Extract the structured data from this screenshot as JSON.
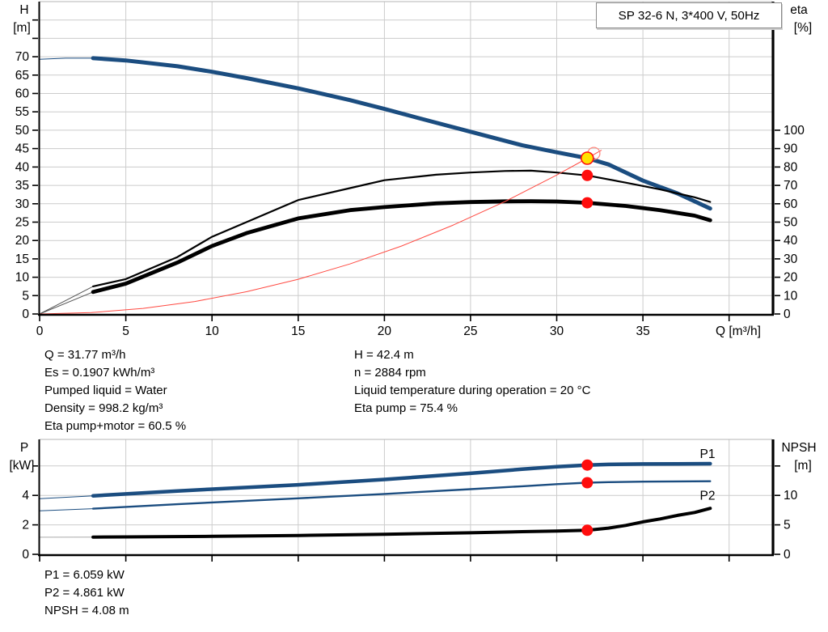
{
  "colors": {
    "curve_blue": "#1B4D80",
    "curve_black": "#000000",
    "system_red": "#FF4A42",
    "marker_red": "#FF0D0D",
    "marker_yellow": "#FFE100",
    "grid_gray": "#CCCCCC",
    "lead_gray": "#909090",
    "axis_black": "#000000"
  },
  "info_left": [
    "Q = 31.77 m³/h",
    "Es = 0.1907 kWh/m³",
    "Pumped liquid = Water",
    "Density = 998.2 kg/m³",
    "Eta pump+motor = 60.5 %"
  ],
  "info_right": [
    "H = 42.4 m",
    "n = 2884 rpm",
    "Liquid temperature during operation = 20 °C",
    "Eta pump = 75.4 %"
  ],
  "results": [
    "P1 = 6.059 kW",
    "P2 = 4.861 kW",
    "NPSH = 4.08 m"
  ],
  "chart_data": [
    {
      "name": "qh-eta-chart",
      "type": "line",
      "title": "SP 32-6 N, 3*400 V, 50Hz",
      "x": {
        "label": "Q [m³/h]",
        "min": 0,
        "max": 42.5,
        "ticks": [
          0,
          5,
          10,
          15,
          20,
          25,
          30,
          35,
          40
        ],
        "labels": [
          "0",
          "5",
          "10",
          "15",
          "20",
          "25",
          "30",
          "35",
          ""
        ]
      },
      "left": {
        "label": [
          "H",
          "[m]"
        ],
        "min": 0,
        "max": 85,
        "grid": 5,
        "ticks": [
          0,
          5,
          10,
          15,
          20,
          25,
          30,
          35,
          40,
          45,
          50,
          55,
          60,
          65,
          70,
          75,
          80
        ],
        "labels": [
          "0",
          "5",
          "10",
          "15",
          "20",
          "25",
          "30",
          "35",
          "40",
          "45",
          "50",
          "55",
          "60",
          "65",
          "70",
          "",
          ""
        ]
      },
      "right": {
        "label": [
          "eta",
          "[%]"
        ],
        "min": 0,
        "max": 170,
        "ticks": [
          0,
          10,
          20,
          30,
          40,
          50,
          60,
          70,
          80,
          90,
          100
        ],
        "labels": [
          "0",
          "10",
          "20",
          "30",
          "40",
          "50",
          "60",
          "70",
          "80",
          "90",
          "100"
        ]
      },
      "series": [
        {
          "name": "head",
          "axis": "left",
          "color": "#1B4D80",
          "width": 5,
          "solid_from": 3.1,
          "lead_color": "#1B4D80",
          "points": [
            [
              0,
              69.3
            ],
            [
              1.5,
              69.6
            ],
            [
              3.1,
              69.6
            ],
            [
              5,
              69.0
            ],
            [
              8,
              67.4
            ],
            [
              10,
              65.9
            ],
            [
              12,
              64.2
            ],
            [
              15,
              61.4
            ],
            [
              18,
              58.2
            ],
            [
              20,
              55.8
            ],
            [
              22,
              53.3
            ],
            [
              25,
              49.6
            ],
            [
              28,
              45.9
            ],
            [
              30,
              44.0
            ],
            [
              31.77,
              42.4
            ],
            [
              33,
              40.7
            ],
            [
              35,
              36.3
            ],
            [
              37,
              32.8
            ],
            [
              38.9,
              28.7
            ]
          ]
        },
        {
          "name": "eta-pump",
          "axis": "right",
          "color": "#000000",
          "width": 2.2,
          "solid_from": 3.1,
          "lead_color": "#555555",
          "points": [
            [
              0,
              0
            ],
            [
              3.1,
              15
            ],
            [
              5,
              19
            ],
            [
              8,
              31
            ],
            [
              10,
              42
            ],
            [
              12,
              50
            ],
            [
              15,
              62
            ],
            [
              18,
              68.5
            ],
            [
              20,
              72.8
            ],
            [
              23,
              75.8
            ],
            [
              25,
              77
            ],
            [
              27,
              77.8
            ],
            [
              28.5,
              78
            ],
            [
              30,
              77
            ],
            [
              31.77,
              75.4
            ],
            [
              34,
              71.5
            ],
            [
              36,
              67.8
            ],
            [
              38,
              63.5
            ],
            [
              38.9,
              61
            ]
          ]
        },
        {
          "name": "eta-pump-motor",
          "axis": "right",
          "color": "#000000",
          "width": 4.8,
          "solid_from": 3.1,
          "lead_color": "#555555",
          "points": [
            [
              0,
              0
            ],
            [
              3.1,
              12
            ],
            [
              5,
              16.5
            ],
            [
              8,
              28
            ],
            [
              10,
              37
            ],
            [
              12,
              44
            ],
            [
              15,
              52
            ],
            [
              18,
              56.5
            ],
            [
              20,
              58.2
            ],
            [
              23,
              60.2
            ],
            [
              25,
              60.9
            ],
            [
              27,
              61.3
            ],
            [
              28.5,
              61.4
            ],
            [
              30,
              61.2
            ],
            [
              31.77,
              60.5
            ],
            [
              34,
              58.8
            ],
            [
              36,
              56.5
            ],
            [
              38,
              53.5
            ],
            [
              38.9,
              51
            ]
          ]
        },
        {
          "name": "system-curve",
          "axis": "left",
          "color": "#FF4A42",
          "width": 1,
          "points": [
            [
              0,
              0
            ],
            [
              3,
              0.38
            ],
            [
              6,
              1.51
            ],
            [
              9,
              3.4
            ],
            [
              12,
              6.05
            ],
            [
              15,
              9.45
            ],
            [
              18,
              13.6
            ],
            [
              21,
              18.5
            ],
            [
              24,
              24.2
            ],
            [
              27,
              30.6
            ],
            [
              30,
              37.8
            ],
            [
              31.77,
              42.4
            ],
            [
              32.6,
              44.6
            ]
          ]
        }
      ],
      "markers": [
        {
          "name": "duty-ring",
          "axis": "left",
          "q": 32.15,
          "v": 43.7,
          "style": "ring"
        },
        {
          "name": "duty-point",
          "axis": "left",
          "q": 31.77,
          "v": 42.4,
          "style": "yellow"
        },
        {
          "name": "eta-pump-point",
          "axis": "right",
          "q": 31.77,
          "v": 75.4,
          "style": "red"
        },
        {
          "name": "eta-pump-motor-point",
          "axis": "right",
          "q": 31.77,
          "v": 60.5,
          "style": "red"
        }
      ],
      "annotations": []
    },
    {
      "name": "power-npsh-chart",
      "type": "line",
      "title": "",
      "x": {
        "label": "",
        "min": 0,
        "max": 42.5,
        "ticks": [
          0,
          5,
          10,
          15,
          20,
          25,
          30,
          35,
          40
        ],
        "labels": [
          "",
          "",
          "",
          "",
          "",
          "",
          "",
          "",
          ""
        ]
      },
      "left": {
        "label": [
          "P",
          "[kW]"
        ],
        "min": 0,
        "max": 7.8,
        "grid": 2,
        "ticks": [
          0,
          2,
          4,
          6
        ],
        "labels": [
          "0",
          "2",
          "4",
          ""
        ]
      },
      "right": {
        "label": [
          "NPSH",
          "[m]"
        ],
        "min": 0,
        "max": 19.5,
        "ticks": [
          0,
          5,
          10,
          15
        ],
        "labels": [
          "0",
          "5",
          "10",
          ""
        ]
      },
      "series": [
        {
          "name": "p1",
          "axis": "left",
          "color": "#1B4D80",
          "width": 4.5,
          "solid_from": 3.1,
          "lead_color": "#1B4D80",
          "points": [
            [
              0,
              3.78
            ],
            [
              3.1,
              3.97
            ],
            [
              5,
              4.1
            ],
            [
              8,
              4.3
            ],
            [
              10,
              4.42
            ],
            [
              15,
              4.72
            ],
            [
              20,
              5.08
            ],
            [
              25,
              5.5
            ],
            [
              28,
              5.78
            ],
            [
              30,
              5.95
            ],
            [
              31.77,
              6.06
            ],
            [
              33,
              6.1
            ],
            [
              35,
              6.13
            ],
            [
              37,
              6.14
            ],
            [
              38.9,
              6.15
            ]
          ]
        },
        {
          "name": "p2",
          "axis": "left",
          "color": "#1B4D80",
          "width": 2.4,
          "solid_from": 3.1,
          "lead_color": "#1B4D80",
          "points": [
            [
              0,
              2.95
            ],
            [
              3.1,
              3.1
            ],
            [
              5,
              3.22
            ],
            [
              8,
              3.4
            ],
            [
              10,
              3.52
            ],
            [
              15,
              3.8
            ],
            [
              20,
              4.1
            ],
            [
              25,
              4.42
            ],
            [
              28,
              4.62
            ],
            [
              30,
              4.76
            ],
            [
              31.77,
              4.861
            ],
            [
              33,
              4.9
            ],
            [
              35,
              4.93
            ],
            [
              37,
              4.95
            ],
            [
              38.9,
              4.96
            ]
          ]
        },
        {
          "name": "npsh",
          "axis": "right",
          "color": "#000000",
          "width": 4,
          "solid_from": 3.1,
          "lead_color": "#aaaaaa",
          "points": [
            [
              0,
              2.9
            ],
            [
              3.1,
              2.92
            ],
            [
              5,
              2.95
            ],
            [
              10,
              3.05
            ],
            [
              15,
              3.2
            ],
            [
              20,
              3.4
            ],
            [
              25,
              3.65
            ],
            [
              28,
              3.85
            ],
            [
              30,
              3.95
            ],
            [
              31.77,
              4.08
            ],
            [
              33,
              4.45
            ],
            [
              34,
              4.9
            ],
            [
              35,
              5.5
            ],
            [
              36,
              6.0
            ],
            [
              37,
              6.6
            ],
            [
              38,
              7.1
            ],
            [
              38.9,
              7.8
            ]
          ]
        }
      ],
      "markers": [
        {
          "name": "p1-point",
          "axis": "left",
          "q": 31.77,
          "v": 6.059,
          "style": "red"
        },
        {
          "name": "p2-point",
          "axis": "left",
          "q": 31.77,
          "v": 4.861,
          "style": "red"
        },
        {
          "name": "npsh-point",
          "axis": "right",
          "q": 31.77,
          "v": 4.08,
          "style": "red"
        }
      ],
      "annotations": [
        {
          "text": "P1",
          "axis": "left",
          "q": 38.3,
          "v": 6.55,
          "color": "#1B4D80"
        },
        {
          "text": "P2",
          "axis": "left",
          "q": 38.3,
          "v": 3.72,
          "color": "#1B4D80"
        }
      ]
    }
  ]
}
